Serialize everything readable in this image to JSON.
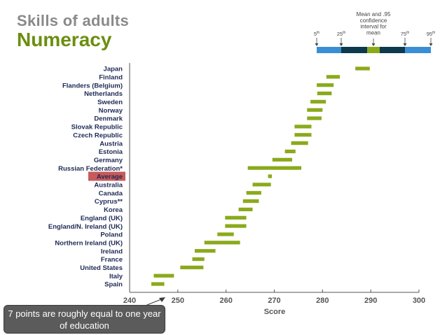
{
  "header": {
    "title": "Skills of adults",
    "subtitle": "Numeracy"
  },
  "legend": {
    "caption_lines": [
      "Mean and .95",
      "confidence",
      "interval for",
      "mean"
    ],
    "percentiles": [
      {
        "num": "5",
        "suffix": "th"
      },
      {
        "num": "25",
        "suffix": "th"
      },
      {
        "num": "75",
        "suffix": "th"
      },
      {
        "num": "95",
        "suffix": "th"
      }
    ],
    "colors": {
      "outer": "#3a8fd4",
      "inner": "#0d3a4c",
      "mean": "#8aaa1c"
    }
  },
  "callout": {
    "text": "7 points are roughly equal to one year of education"
  },
  "chart_data": {
    "type": "bar",
    "orientation": "horizontal-range",
    "xlabel": "Score",
    "xlim": [
      240,
      300
    ],
    "xticks": [
      240,
      250,
      260,
      270,
      280,
      290,
      300
    ],
    "bar_color": "#8aaa1c",
    "highlight_color": "#c85a5a",
    "highlight_category": "Average",
    "categories": [
      "Japan",
      "Finland",
      "Flanders (Belgium)",
      "Netherlands",
      "Sweden",
      "Norway",
      "Denmark",
      "Slovak Republic",
      "Czech Republic",
      "Austria",
      "Estonia",
      "Germany",
      "Russian Federation*",
      "Average",
      "Australia",
      "Canada",
      "Cyprus**",
      "Korea",
      "England (UK)",
      "England/N. Ireland (UK)",
      "Poland",
      "Northern Ireland (UK)",
      "Ireland",
      "France",
      "United States",
      "Italy",
      "Spain"
    ],
    "ranges": [
      [
        286.8,
        289.8
      ],
      [
        280.8,
        283.6
      ],
      [
        278.8,
        282.3
      ],
      [
        278.9,
        281.9
      ],
      [
        277.5,
        280.7
      ],
      [
        276.8,
        280.0
      ],
      [
        276.8,
        279.8
      ],
      [
        274.2,
        277.7
      ],
      [
        274.2,
        277.7
      ],
      [
        273.5,
        277.0
      ],
      [
        272.2,
        274.4
      ],
      [
        269.6,
        273.7
      ],
      [
        264.5,
        275.6
      ],
      [
        268.7,
        269.5
      ],
      [
        265.5,
        269.3
      ],
      [
        264.2,
        267.3
      ],
      [
        263.5,
        266.8
      ],
      [
        262.6,
        265.5
      ],
      [
        259.8,
        264.2
      ],
      [
        259.8,
        264.2
      ],
      [
        258.2,
        261.6
      ],
      [
        255.5,
        262.9
      ],
      [
        253.5,
        257.8
      ],
      [
        253.0,
        255.5
      ],
      [
        250.5,
        255.3
      ],
      [
        245.0,
        249.2
      ],
      [
        244.5,
        247.2
      ]
    ]
  }
}
